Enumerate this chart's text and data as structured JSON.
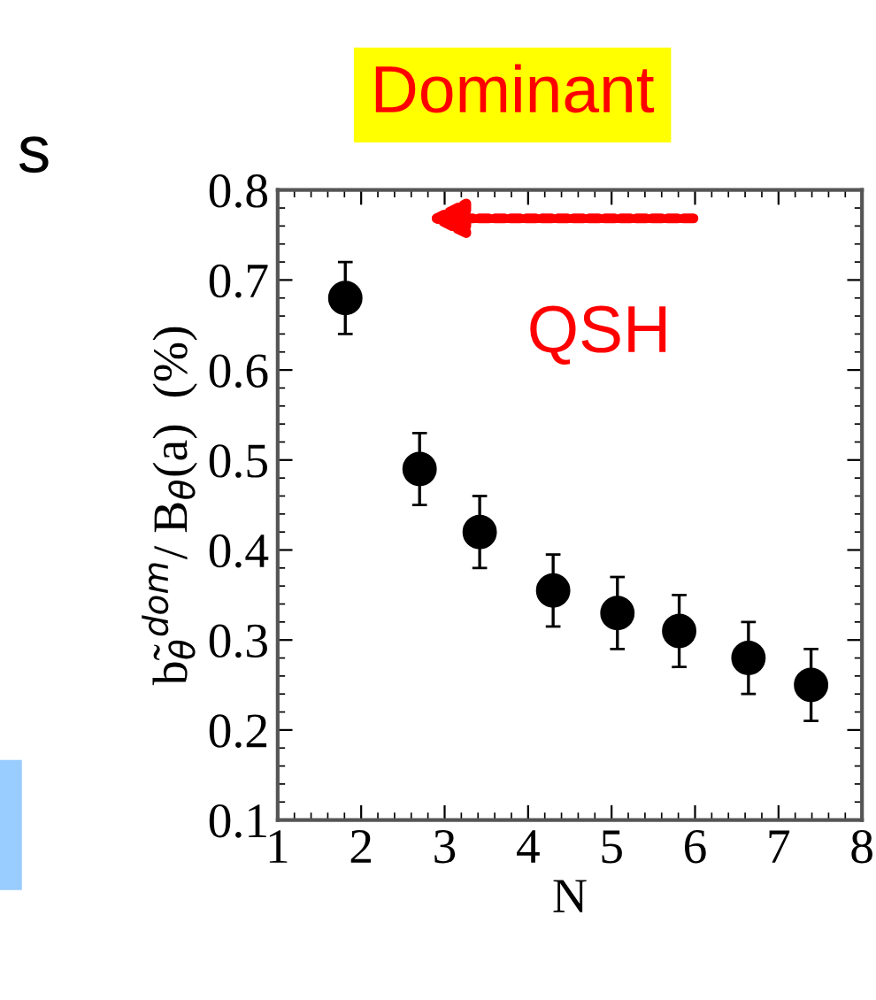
{
  "chart_data": {
    "type": "scatter",
    "xlabel": "N",
    "ylabel": "b̃$_{θ}$$^{dom}$/ B$_{θ}$(a)  (%)",
    "x": [
      1.81,
      2.7,
      3.42,
      4.3,
      5.07,
      5.81,
      6.64,
      7.39
    ],
    "values": [
      0.68,
      0.49,
      0.42,
      0.355,
      0.33,
      0.31,
      0.28,
      0.25
    ],
    "errors": [
      0.04,
      0.04,
      0.04,
      0.04,
      0.04,
      0.04,
      0.04,
      0.04
    ],
    "color": "#000000",
    "marker": "circle",
    "xlim": [
      1,
      8
    ],
    "xticks": [
      1,
      2,
      3,
      4,
      5,
      6,
      7,
      8
    ],
    "ylim": [
      0.1,
      0.8
    ],
    "yticks": [
      0.1,
      0.2,
      0.3,
      0.4,
      0.5,
      0.6,
      0.7,
      0.8
    ],
    "grid": false,
    "annotations": [
      "Dominant",
      "QSH",
      "s"
    ]
  }
}
